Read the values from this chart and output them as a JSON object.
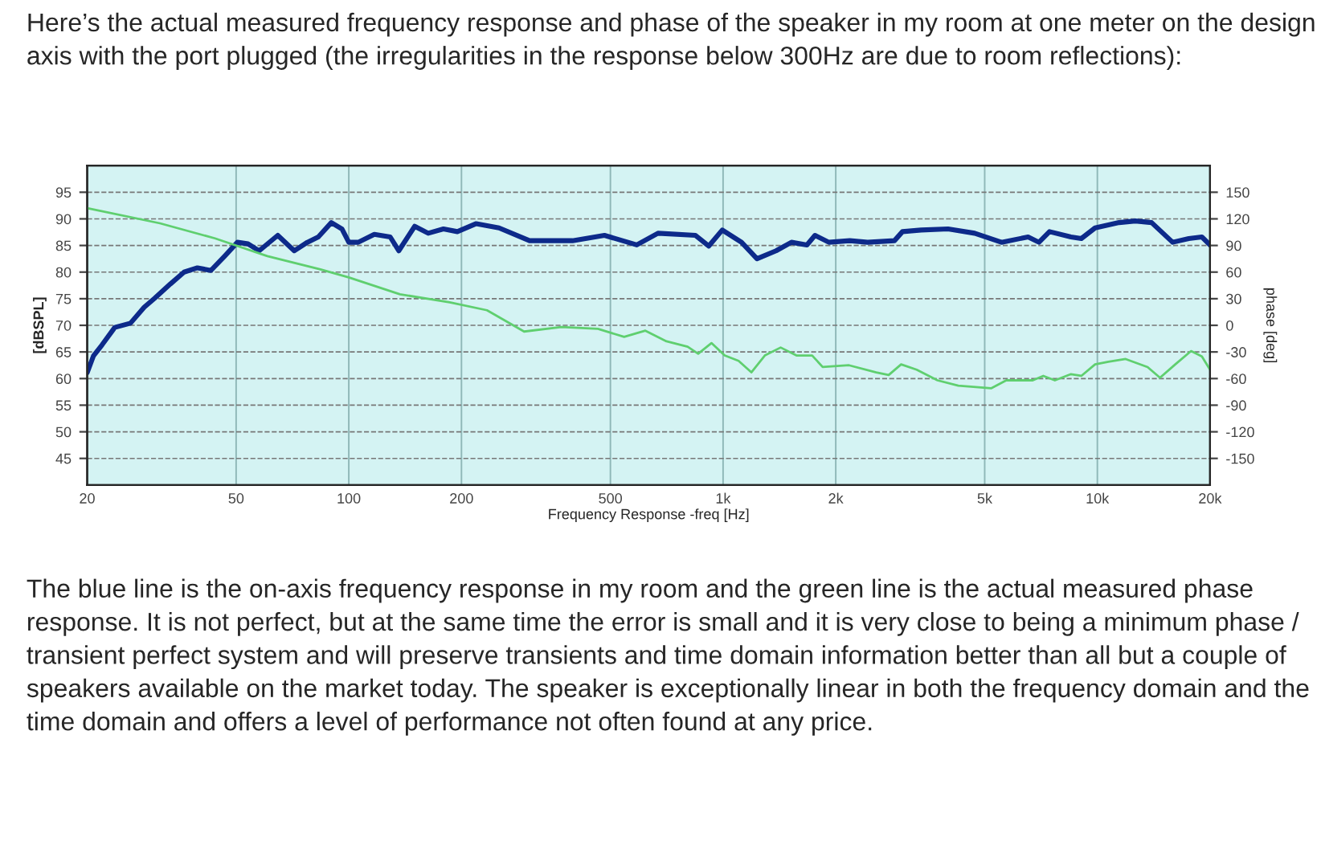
{
  "chart_data": {
    "type": "line",
    "title": "Here’s the actual measured frequency response and phase of the speaker in my room at one meter on the design axis with the port plugged (the irregularities in the response below 300Hz are due to room reflections):",
    "xlabel": "Frequency Response -freq [Hz]",
    "ylabel": "[dBSPL]",
    "y2label": "phase [deg]",
    "annotations": [
      "The blue line is the on-axis frequency response in my room and the green line is the actual measured phase response. It is not perfect, but at the same time the error is small and it is very close to being a minimum phase / transient perfect system and will preserve transients and time domain information better than all but a couple of speakers available on the market today. The speaker is exceptionally linear in both the frequency domain and the time domain and offers a level of performance not often found at any price."
    ],
    "log": "x",
    "grid": true,
    "marker": "none",
    "line_style": "solid",
    "xlim": [
      20,
      20000
    ],
    "xticks": [
      20,
      50,
      100,
      200,
      500,
      {
        "value": 1000,
        "label": "1k"
      },
      {
        "value": 2000,
        "label": "2k"
      },
      {
        "value": 5000,
        "label": "5k"
      },
      {
        "value": 10000,
        "label": "10k"
      },
      {
        "value": 20000,
        "label": "20k"
      }
    ],
    "ylim": [
      40,
      100
    ],
    "yticks": [
      45,
      50,
      55,
      60,
      65,
      70,
      75,
      80,
      85,
      90,
      95
    ],
    "y2lim": [
      -180,
      180
    ],
    "y2ticks": [
      -150,
      -120,
      -90,
      -60,
      -30,
      0,
      30,
      60,
      90,
      120,
      150
    ],
    "series": [
      {
        "color": "#0d2a8a",
        "x": [
          20,
          20.8,
          21.9,
          23.7,
          26.1,
          28.4,
          30.3,
          33.4,
          36.3,
          39.4,
          42.8,
          46.6,
          50.4,
          53.8,
          57.6,
          64.6,
          71.5,
          77.5,
          82.9,
          89.8,
          95.9,
          100,
          106,
          117,
          129,
          136,
          150,
          163,
          179,
          195,
          219,
          252,
          304,
          396,
          482,
          588,
          670,
          844,
          916,
          995,
          1120,
          1232,
          1385,
          1523,
          1675,
          1760,
          1917,
          2180,
          2433,
          2870,
          3015,
          3380,
          3990,
          4700,
          5545,
          6530,
          6980,
          7450,
          8500,
          9060,
          9860,
          11430,
          12630,
          13960,
          15890,
          17550,
          19020,
          20000
        ],
        "values": [
          61.1,
          64.3,
          66.3,
          69.6,
          70.4,
          73.4,
          75.1,
          77.8,
          80,
          80.8,
          80.3,
          83,
          85.6,
          85.3,
          84,
          86.9,
          84,
          85.6,
          86.6,
          89.3,
          88.1,
          85.6,
          85.6,
          87.1,
          86.6,
          84,
          88.6,
          87.3,
          88.1,
          87.6,
          89.1,
          88.3,
          85.9,
          85.9,
          86.9,
          85.1,
          87.3,
          86.9,
          84.9,
          87.9,
          85.6,
          82.5,
          84,
          85.6,
          85.1,
          86.9,
          85.6,
          85.9,
          85.6,
          85.9,
          87.6,
          87.9,
          88.1,
          87.3,
          85.6,
          86.6,
          85.6,
          87.6,
          86.6,
          86.3,
          88.3,
          89.3,
          89.6,
          89.3,
          85.6,
          86.3,
          86.6,
          85.1
        ]
      },
      {
        "color": "#5fcf6f",
        "axis": "y2",
        "x": [
          20,
          31.3,
          43.9,
          60.6,
          84,
          100,
          137,
          186,
          234,
          294,
          370,
          463,
          544,
          620,
          706,
          804,
          858,
          931,
          1010,
          1100,
          1190,
          1293,
          1425,
          1570,
          1730,
          1845,
          2170,
          2565,
          2770,
          2990,
          3290,
          3740,
          4250,
          5200,
          5710,
          6720,
          7170,
          7700,
          8500,
          9060,
          9860,
          10700,
          11900,
          13620,
          14700,
          16150,
          17800,
          19020,
          20000
        ],
        "values": [
          132,
          115,
          98,
          78,
          63,
          54,
          35,
          26,
          17,
          -7,
          -2,
          -4,
          -13,
          -6,
          -18,
          -24,
          -32,
          -20,
          -34,
          -40,
          -53,
          -34,
          -25,
          -34,
          -34,
          -47,
          -45,
          -53,
          -56,
          -44,
          -50,
          -62,
          -68,
          -71,
          -62,
          -62,
          -57,
          -62,
          -55,
          -57,
          -44,
          -41,
          -38,
          -47,
          -59,
          -44,
          -29,
          -35,
          -50
        ]
      }
    ]
  }
}
